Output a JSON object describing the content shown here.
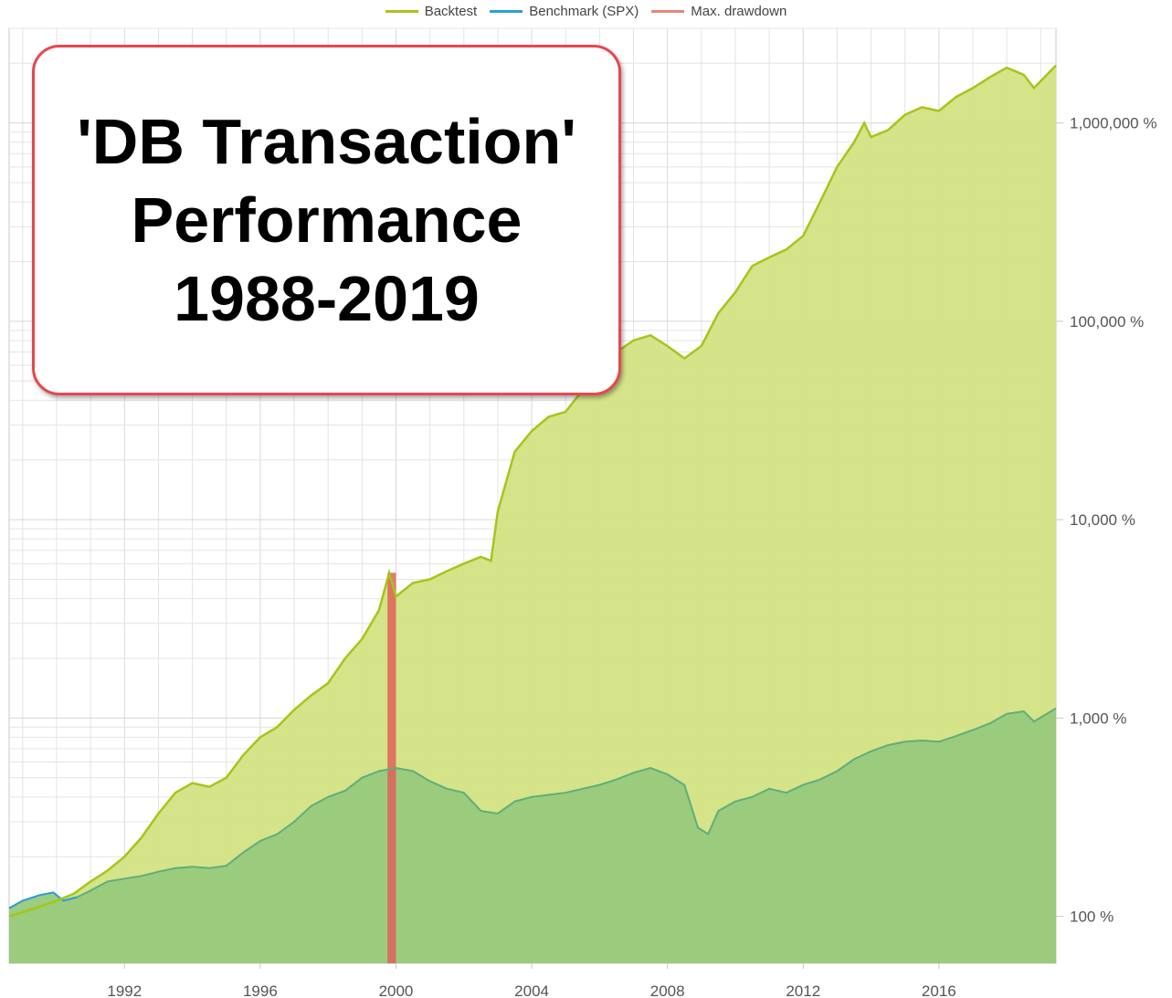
{
  "chart_data": {
    "type": "area",
    "y_scale": "log",
    "legend": [
      "Backtest",
      "Benchmark (SPX)",
      "Max. drawdown"
    ],
    "legend_position": "top-center",
    "grid": true,
    "x_ticks": [
      "1992",
      "1996",
      "2000",
      "2004",
      "2008",
      "2012",
      "2016"
    ],
    "y_ticks": [
      "100 %",
      "1,000 %",
      "10,000 %",
      "100,000 %",
      "1,000,000 %"
    ],
    "y_tick_values": [
      100,
      1000,
      10000,
      100000,
      1000000
    ],
    "xlim": [
      1988.6,
      2019.45
    ],
    "ylim": [
      58,
      3000000
    ],
    "series": [
      {
        "name": "Backtest",
        "color": "#a4c61a",
        "fill": "#d3e283",
        "points": [
          [
            1988.6,
            100
          ],
          [
            1989.0,
            105
          ],
          [
            1989.5,
            112
          ],
          [
            1990.0,
            120
          ],
          [
            1990.5,
            130
          ],
          [
            1991.0,
            150
          ],
          [
            1991.5,
            170
          ],
          [
            1992.0,
            200
          ],
          [
            1992.5,
            250
          ],
          [
            1993.0,
            330
          ],
          [
            1993.5,
            420
          ],
          [
            1994.0,
            470
          ],
          [
            1994.5,
            450
          ],
          [
            1995.0,
            500
          ],
          [
            1995.5,
            650
          ],
          [
            1996.0,
            800
          ],
          [
            1996.5,
            900
          ],
          [
            1997.0,
            1100
          ],
          [
            1997.5,
            1300
          ],
          [
            1998.0,
            1500
          ],
          [
            1998.5,
            2000
          ],
          [
            1999.0,
            2500
          ],
          [
            1999.5,
            3500
          ],
          [
            1999.8,
            5400
          ],
          [
            2000.0,
            4100
          ],
          [
            2000.5,
            4800
          ],
          [
            2001.0,
            5000
          ],
          [
            2001.5,
            5500
          ],
          [
            2002.0,
            6000
          ],
          [
            2002.5,
            6500
          ],
          [
            2002.8,
            6200
          ],
          [
            2003.0,
            11000
          ],
          [
            2003.5,
            22000
          ],
          [
            2004.0,
            28000
          ],
          [
            2004.5,
            33000
          ],
          [
            2005.0,
            35000
          ],
          [
            2005.5,
            45000
          ],
          [
            2006.0,
            55000
          ],
          [
            2006.5,
            70000
          ],
          [
            2007.0,
            80000
          ],
          [
            2007.5,
            85000
          ],
          [
            2008.0,
            75000
          ],
          [
            2008.5,
            65000
          ],
          [
            2009.0,
            75000
          ],
          [
            2009.5,
            110000
          ],
          [
            2010.0,
            140000
          ],
          [
            2010.5,
            190000
          ],
          [
            2011.0,
            210000
          ],
          [
            2011.5,
            230000
          ],
          [
            2012.0,
            270000
          ],
          [
            2012.5,
            400000
          ],
          [
            2013.0,
            600000
          ],
          [
            2013.5,
            800000
          ],
          [
            2013.8,
            1000000
          ],
          [
            2014.0,
            850000
          ],
          [
            2014.5,
            920000
          ],
          [
            2015.0,
            1100000
          ],
          [
            2015.5,
            1200000
          ],
          [
            2016.0,
            1150000
          ],
          [
            2016.5,
            1350000
          ],
          [
            2017.0,
            1500000
          ],
          [
            2017.5,
            1700000
          ],
          [
            2018.0,
            1900000
          ],
          [
            2018.5,
            1750000
          ],
          [
            2018.8,
            1500000
          ],
          [
            2019.45,
            1950000
          ]
        ]
      },
      {
        "name": "Benchmark (SPX)",
        "color": "#2c9fd6",
        "fill": "#98c97c",
        "points": [
          [
            1988.6,
            110
          ],
          [
            1989.0,
            120
          ],
          [
            1989.5,
            128
          ],
          [
            1989.9,
            132
          ],
          [
            1990.2,
            120
          ],
          [
            1990.6,
            125
          ],
          [
            1991.0,
            135
          ],
          [
            1991.5,
            150
          ],
          [
            1992.0,
            155
          ],
          [
            1992.5,
            160
          ],
          [
            1993.0,
            168
          ],
          [
            1993.5,
            175
          ],
          [
            1994.0,
            178
          ],
          [
            1994.5,
            175
          ],
          [
            1995.0,
            180
          ],
          [
            1995.5,
            210
          ],
          [
            1996.0,
            240
          ],
          [
            1996.5,
            260
          ],
          [
            1997.0,
            300
          ],
          [
            1997.5,
            360
          ],
          [
            1998.0,
            400
          ],
          [
            1998.5,
            430
          ],
          [
            1999.0,
            500
          ],
          [
            1999.5,
            540
          ],
          [
            2000.0,
            560
          ],
          [
            2000.5,
            540
          ],
          [
            2001.0,
            480
          ],
          [
            2001.5,
            440
          ],
          [
            2002.0,
            420
          ],
          [
            2002.5,
            340
          ],
          [
            2003.0,
            330
          ],
          [
            2003.5,
            380
          ],
          [
            2004.0,
            400
          ],
          [
            2004.5,
            410
          ],
          [
            2005.0,
            420
          ],
          [
            2005.5,
            440
          ],
          [
            2006.0,
            460
          ],
          [
            2006.5,
            490
          ],
          [
            2007.0,
            530
          ],
          [
            2007.5,
            560
          ],
          [
            2008.0,
            520
          ],
          [
            2008.5,
            460
          ],
          [
            2008.9,
            280
          ],
          [
            2009.2,
            260
          ],
          [
            2009.5,
            340
          ],
          [
            2010.0,
            380
          ],
          [
            2010.5,
            400
          ],
          [
            2011.0,
            440
          ],
          [
            2011.5,
            420
          ],
          [
            2012.0,
            460
          ],
          [
            2012.5,
            490
          ],
          [
            2013.0,
            540
          ],
          [
            2013.5,
            620
          ],
          [
            2014.0,
            680
          ],
          [
            2014.5,
            730
          ],
          [
            2015.0,
            760
          ],
          [
            2015.5,
            770
          ],
          [
            2016.0,
            760
          ],
          [
            2016.5,
            810
          ],
          [
            2017.0,
            870
          ],
          [
            2017.5,
            940
          ],
          [
            2018.0,
            1050
          ],
          [
            2018.5,
            1080
          ],
          [
            2018.8,
            960
          ],
          [
            2019.45,
            1120
          ]
        ]
      }
    ],
    "drawdown": {
      "name": "Max. drawdown",
      "color": "#e0605a",
      "x_start": 1999.75,
      "x_end": 2000.0
    }
  },
  "annotation": {
    "line1": "'DB Transaction'",
    "line2": "Performance",
    "line3": "1988-2019"
  },
  "colors": {
    "grid": "#e4e4e4",
    "axis": "#c8c8c8",
    "backtest_line": "#a4c61a",
    "benchmark_line": "#2c9fd6",
    "drawdown": "#e8847c",
    "box_border": "#e8474d"
  }
}
